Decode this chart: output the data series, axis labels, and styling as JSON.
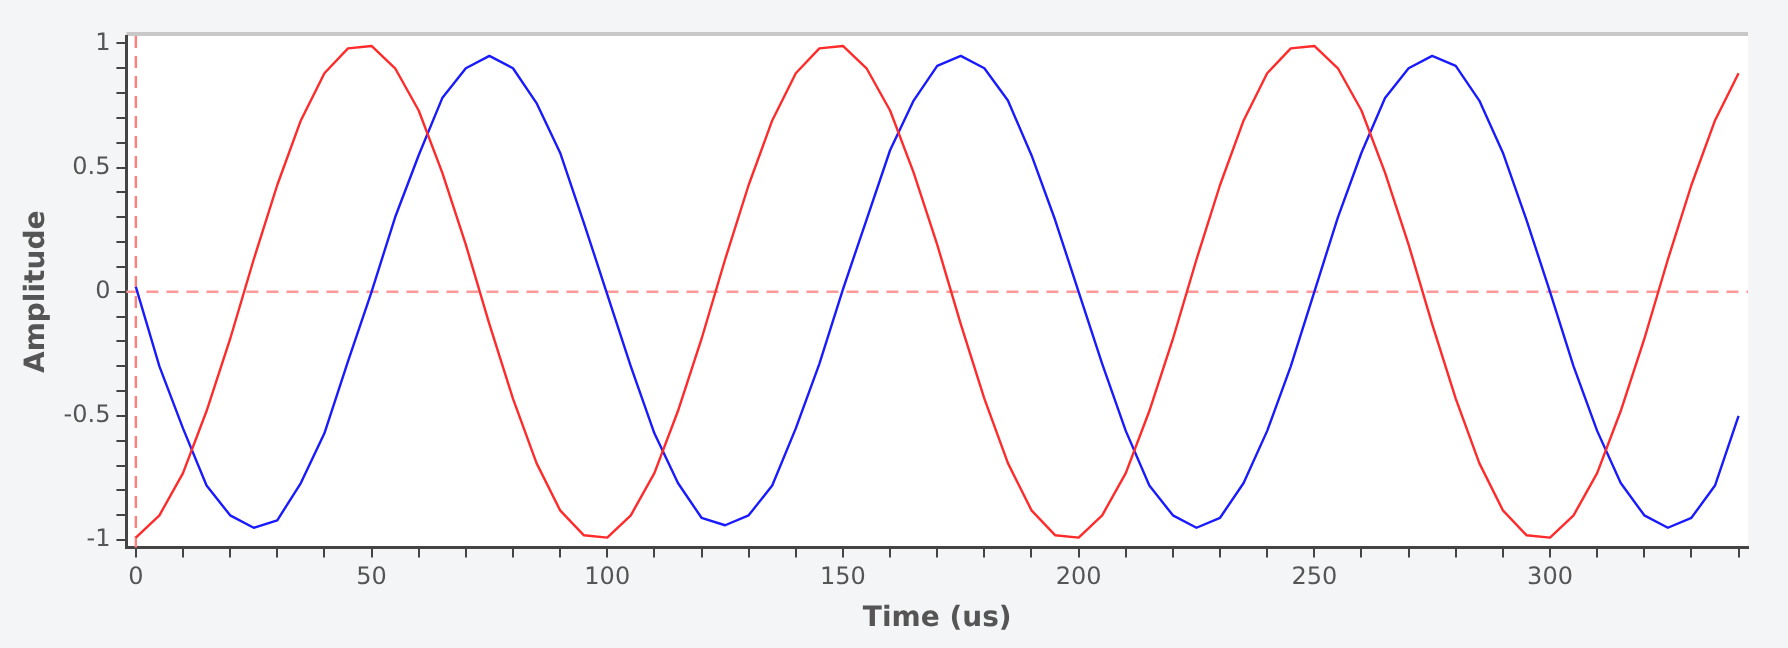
{
  "chart_data": {
    "type": "line",
    "xlabel": "Time (us)",
    "ylabel": "Amplitude",
    "xlim": [
      -2,
      342
    ],
    "ylim": [
      -1.03,
      1.03
    ],
    "xticks": [
      0,
      {
        "value": 10,
        "label": null
      },
      {
        "value": 20,
        "label": null
      },
      {
        "value": 30,
        "label": null
      },
      {
        "value": 40,
        "label": null
      },
      50,
      {
        "value": 60,
        "label": null
      },
      {
        "value": 70,
        "label": null
      },
      {
        "value": 80,
        "label": null
      },
      {
        "value": 90,
        "label": null
      },
      100,
      {
        "value": 110,
        "label": null
      },
      {
        "value": 120,
        "label": null
      },
      {
        "value": 130,
        "label": null
      },
      {
        "value": 140,
        "label": null
      },
      150,
      {
        "value": 160,
        "label": null
      },
      {
        "value": 170,
        "label": null
      },
      {
        "value": 180,
        "label": null
      },
      {
        "value": 190,
        "label": null
      },
      200,
      {
        "value": 210,
        "label": null
      },
      {
        "value": 220,
        "label": null
      },
      {
        "value": 230,
        "label": null
      },
      {
        "value": 240,
        "label": null
      },
      250,
      {
        "value": 260,
        "label": null
      },
      {
        "value": 270,
        "label": null
      },
      {
        "value": 280,
        "label": null
      },
      {
        "value": 290,
        "label": null
      },
      300,
      {
        "value": 310,
        "label": null
      },
      {
        "value": 320,
        "label": null
      },
      {
        "value": 330,
        "label": null
      },
      {
        "value": 340,
        "label": null
      }
    ],
    "yticks": [
      -1,
      {
        "value": -0.9,
        "label": null
      },
      {
        "value": -0.8,
        "label": null
      },
      {
        "value": -0.7,
        "label": null
      },
      {
        "value": -0.6,
        "label": null
      },
      -0.5,
      {
        "value": -0.4,
        "label": null
      },
      {
        "value": -0.3,
        "label": null
      },
      {
        "value": -0.2,
        "label": null
      },
      {
        "value": -0.1,
        "label": null
      },
      0,
      {
        "value": 0.1,
        "label": null
      },
      {
        "value": 0.2,
        "label": null
      },
      {
        "value": 0.3,
        "label": null
      },
      {
        "value": 0.4,
        "label": null
      },
      0.5,
      {
        "value": 0.6,
        "label": null
      },
      {
        "value": 0.7,
        "label": null
      },
      {
        "value": 0.8,
        "label": null
      },
      {
        "value": 0.9,
        "label": null
      },
      1
    ],
    "grid": false,
    "legend": false,
    "marker": "none",
    "line_style": "solid",
    "ref_lines": [
      {
        "axis": "y",
        "value": 0,
        "color": "#ff9999",
        "line_style": "dashed"
      },
      {
        "axis": "x",
        "value": 0,
        "color": "#ff7f7f",
        "line_style": "dashed"
      }
    ],
    "x": [
      0,
      5,
      10,
      15,
      20,
      25,
      30,
      35,
      40,
      45,
      50,
      55,
      60,
      65,
      70,
      75,
      80,
      85,
      90,
      95,
      100,
      105,
      110,
      115,
      120,
      125,
      130,
      135,
      140,
      145,
      150,
      155,
      160,
      165,
      170,
      175,
      180,
      185,
      190,
      195,
      200,
      205,
      210,
      215,
      220,
      225,
      230,
      235,
      240,
      245,
      250,
      255,
      260,
      265,
      270,
      275,
      280,
      285,
      290,
      295,
      300,
      305,
      310,
      315,
      320,
      325,
      330,
      335,
      340
    ],
    "series": [
      {
        "color": "#ff2a2a",
        "values": [
          -0.99,
          -0.9,
          -0.73,
          -0.48,
          -0.19,
          0.13,
          0.43,
          0.69,
          0.88,
          0.98,
          0.99,
          0.9,
          0.73,
          0.48,
          0.19,
          -0.13,
          -0.43,
          -0.69,
          -0.88,
          -0.98,
          -0.99,
          -0.9,
          -0.73,
          -0.48,
          -0.19,
          0.13,
          0.43,
          0.69,
          0.88,
          0.98,
          0.99,
          0.9,
          0.73,
          0.48,
          0.19,
          -0.13,
          -0.43,
          -0.69,
          -0.88,
          -0.98,
          -0.99,
          -0.9,
          -0.73,
          -0.48,
          -0.19,
          0.13,
          0.43,
          0.69,
          0.88,
          0.98,
          0.99,
          0.9,
          0.73,
          0.48,
          0.19,
          -0.13,
          -0.43,
          -0.69,
          -0.88,
          -0.98,
          -0.99,
          -0.9,
          -0.73,
          -0.48,
          -0.19,
          0.13,
          0.43,
          0.69,
          0.88
        ]
      },
      {
        "color": "#1a1aff",
        "values": [
          0.02,
          -0.3,
          -0.55,
          -0.78,
          -0.9,
          -0.95,
          -0.92,
          -0.77,
          -0.57,
          -0.28,
          0,
          0.3,
          0.55,
          0.78,
          0.9,
          0.95,
          0.9,
          0.76,
          0.56,
          0.28,
          -0.01,
          -0.3,
          -0.57,
          -0.77,
          -0.91,
          -0.94,
          -0.9,
          -0.78,
          -0.55,
          -0.29,
          0.01,
          0.29,
          0.57,
          0.77,
          0.91,
          0.95,
          0.9,
          0.77,
          0.55,
          0.29,
          0,
          -0.29,
          -0.56,
          -0.78,
          -0.9,
          -0.95,
          -0.91,
          -0.77,
          -0.56,
          -0.3,
          0,
          0.3,
          0.56,
          0.78,
          0.9,
          0.95,
          0.91,
          0.77,
          0.56,
          0.29,
          0,
          -0.3,
          -0.56,
          -0.77,
          -0.9,
          -0.95,
          -0.91,
          -0.78,
          -0.5
        ]
      }
    ]
  }
}
